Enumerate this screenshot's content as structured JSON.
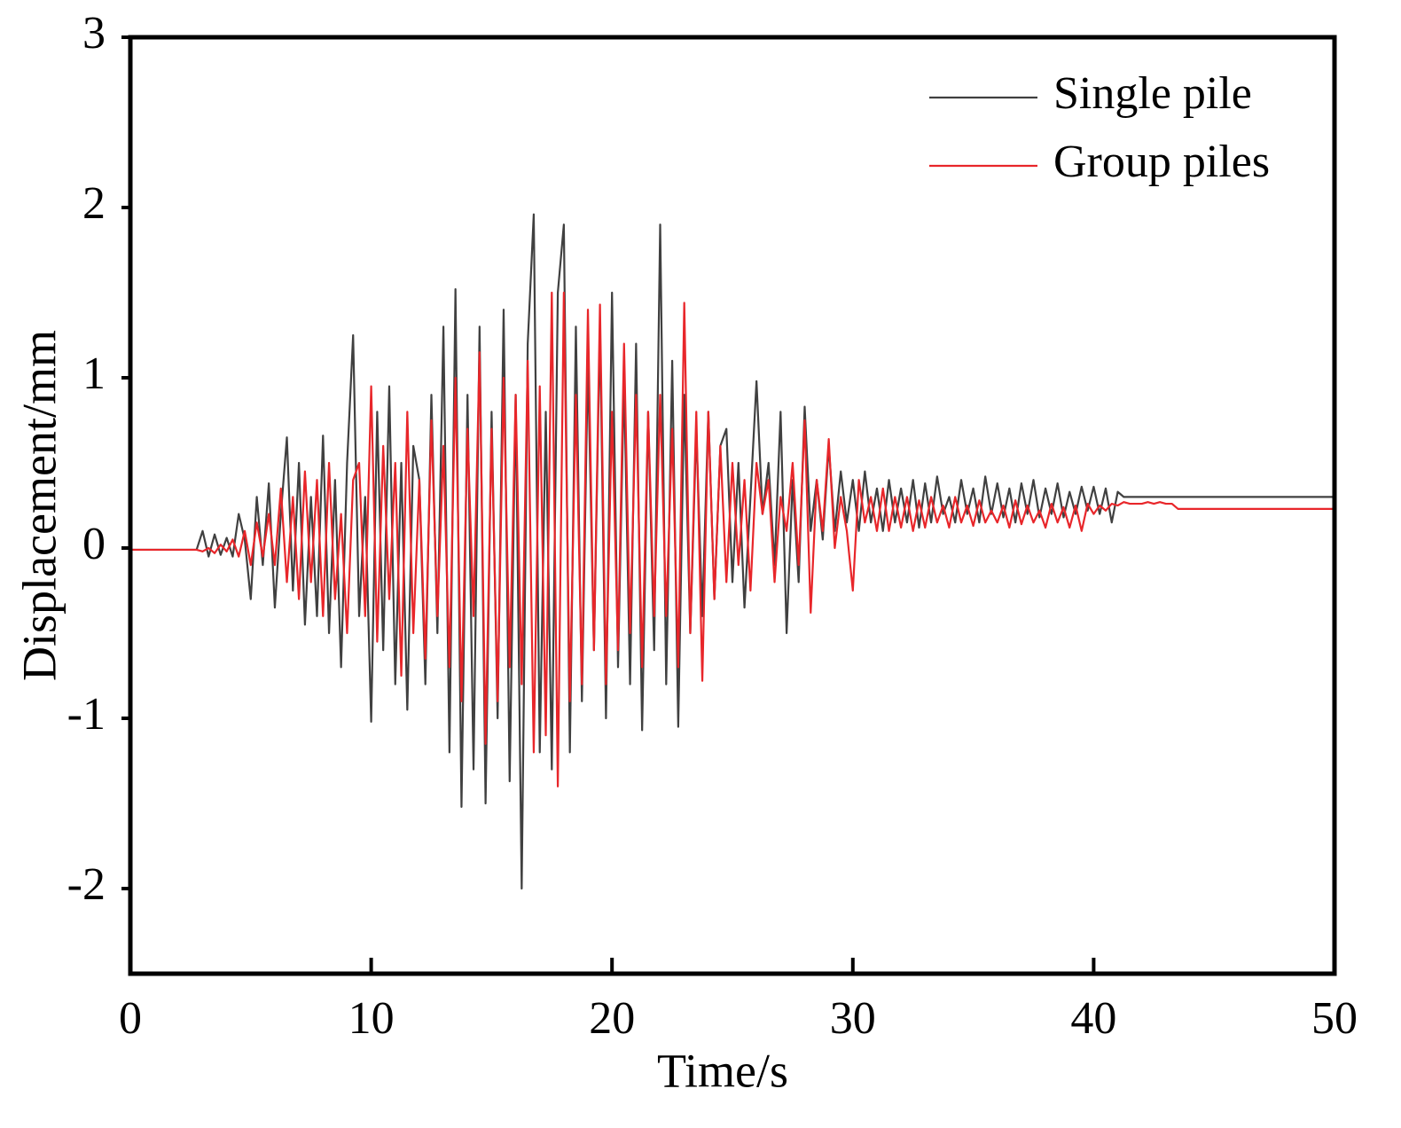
{
  "chart_data": {
    "type": "line",
    "xlabel": "Time/s",
    "ylabel": "Displacement/mm",
    "xlim": [
      0,
      50
    ],
    "xticks": [
      0,
      10,
      20,
      30,
      40,
      50
    ],
    "ylim": [
      -2.5,
      3
    ],
    "yticks": [
      -2,
      -1,
      0,
      1,
      2,
      3
    ],
    "legend": "upper right",
    "x": [
      0,
      0.25,
      0.5,
      0.75,
      1,
      1.25,
      1.5,
      1.75,
      2,
      2.25,
      2.5,
      2.75,
      3,
      3.25,
      3.5,
      3.75,
      4,
      4.25,
      4.5,
      4.75,
      5,
      5.25,
      5.5,
      5.75,
      6,
      6.25,
      6.5,
      6.75,
      7,
      7.25,
      7.5,
      7.75,
      8,
      8.25,
      8.5,
      8.75,
      9,
      9.25,
      9.5,
      9.75,
      10,
      10.25,
      10.5,
      10.75,
      11,
      11.25,
      11.5,
      11.75,
      12,
      12.25,
      12.5,
      12.75,
      13,
      13.25,
      13.5,
      13.75,
      14,
      14.25,
      14.5,
      14.75,
      15,
      15.25,
      15.5,
      15.75,
      16,
      16.25,
      16.5,
      16.75,
      17,
      17.25,
      17.5,
      17.75,
      18,
      18.25,
      18.5,
      18.75,
      19,
      19.25,
      19.5,
      19.75,
      20,
      20.25,
      20.5,
      20.75,
      21,
      21.25,
      21.5,
      21.75,
      22,
      22.25,
      22.5,
      22.75,
      23,
      23.25,
      23.5,
      23.75,
      24,
      24.25,
      24.5,
      24.75,
      25,
      25.25,
      25.5,
      25.75,
      26,
      26.25,
      26.5,
      26.75,
      27,
      27.25,
      27.5,
      27.75,
      28,
      28.25,
      28.5,
      28.75,
      29,
      29.25,
      29.5,
      29.75,
      30,
      30.25,
      30.5,
      30.75,
      31,
      31.25,
      31.5,
      31.75,
      32,
      32.25,
      32.5,
      32.75,
      33,
      33.25,
      33.5,
      33.75,
      34,
      34.25,
      34.5,
      34.75,
      35,
      35.25,
      35.5,
      35.75,
      36,
      36.25,
      36.5,
      36.75,
      37,
      37.25,
      37.5,
      37.75,
      38,
      38.25,
      38.5,
      38.75,
      39,
      39.25,
      39.5,
      39.75,
      40,
      40.25,
      40.5,
      40.75,
      41,
      41.25,
      41.5,
      41.75,
      42,
      42.25,
      42.5,
      42.75,
      43,
      43.25,
      43.5,
      43.75,
      44,
      44.25,
      44.5,
      44.75,
      45,
      45.25,
      45.5,
      45.75,
      46,
      46.25,
      46.5,
      46.75,
      47,
      47.25,
      47.5,
      47.75,
      48,
      48.25,
      48.5,
      48.75,
      49,
      49.25,
      49.5,
      49.75,
      50
    ],
    "series": [
      {
        "name": "Single pile",
        "color": "#404040",
        "values": [
          -0.01,
          -0.01,
          -0.01,
          -0.01,
          -0.01,
          -0.01,
          -0.01,
          -0.01,
          -0.01,
          -0.01,
          -0.01,
          -0.01,
          0.1,
          -0.05,
          0.08,
          -0.04,
          0.06,
          -0.05,
          0.2,
          0.05,
          -0.3,
          0.3,
          -0.1,
          0.38,
          -0.35,
          0.2,
          0.65,
          -0.25,
          0.5,
          -0.45,
          0.3,
          -0.4,
          0.66,
          -0.5,
          0.4,
          -0.7,
          0.5,
          1.25,
          -0.4,
          0.3,
          -1.02,
          0.8,
          -0.6,
          0.95,
          -0.8,
          0.5,
          -0.95,
          0.6,
          0.4,
          -0.8,
          0.9,
          -0.5,
          1.3,
          -1.2,
          1.52,
          -1.52,
          0.9,
          -1.3,
          1.3,
          -1.5,
          0.8,
          -1.0,
          1.4,
          -1.37,
          0.9,
          -2.0,
          1.2,
          1.96,
          -1.2,
          0.8,
          -1.3,
          1.5,
          1.9,
          -1.2,
          1.3,
          -0.9,
          1.1,
          -0.6,
          1.3,
          -1.0,
          1.5,
          -0.7,
          1.0,
          -0.8,
          1.2,
          -1.07,
          0.8,
          -0.6,
          1.9,
          -0.8,
          1.1,
          -1.05,
          0.9,
          -0.5,
          0.7,
          -0.4,
          0.8,
          -0.3,
          0.6,
          0.7,
          -0.2,
          0.5,
          -0.35,
          0.3,
          0.98,
          0.2,
          0.5,
          -0.1,
          0.8,
          -0.5,
          0.4,
          -0.2,
          0.83,
          0.1,
          0.4,
          0.05,
          0.6,
          0.1,
          0.45,
          0.15,
          0.4,
          0.1,
          0.45,
          0.15,
          0.35,
          0.1,
          0.4,
          0.15,
          0.35,
          0.15,
          0.4,
          0.12,
          0.38,
          0.15,
          0.42,
          0.2,
          0.3,
          0.15,
          0.4,
          0.2,
          0.35,
          0.15,
          0.42,
          0.2,
          0.38,
          0.18,
          0.35,
          0.15,
          0.38,
          0.2,
          0.4,
          0.18,
          0.35,
          0.2,
          0.38,
          0.18,
          0.33,
          0.2,
          0.36,
          0.22,
          0.36,
          0.2,
          0.35,
          0.15,
          0.33,
          0.3,
          0.3,
          0.3,
          0.3,
          0.3,
          0.3,
          0.3,
          0.3,
          0.3,
          0.3,
          0.3,
          0.3,
          0.3,
          0.3,
          0.3,
          0.3,
          0.3,
          0.3,
          0.3,
          0.3,
          0.3,
          0.3,
          0.3,
          0.3,
          0.3,
          0.3,
          0.3,
          0.3,
          0.3,
          0.3,
          0.3,
          0.3,
          0.3,
          0.3,
          0.3,
          0.3
        ]
      },
      {
        "name": "Group piles",
        "color": "#e8262a",
        "values": [
          -0.01,
          -0.01,
          -0.01,
          -0.01,
          -0.01,
          -0.01,
          -0.01,
          -0.01,
          -0.01,
          -0.01,
          -0.01,
          -0.01,
          -0.02,
          0.0,
          -0.03,
          0.02,
          -0.02,
          0.05,
          -0.05,
          0.1,
          -0.1,
          0.15,
          -0.05,
          0.2,
          -0.1,
          0.35,
          -0.2,
          0.3,
          -0.3,
          0.45,
          -0.2,
          0.4,
          -0.4,
          0.5,
          -0.3,
          0.2,
          -0.5,
          0.4,
          0.5,
          -0.4,
          0.95,
          -0.55,
          0.6,
          -0.3,
          0.5,
          -0.75,
          0.8,
          -0.5,
          0.4,
          -0.65,
          0.75,
          -0.4,
          0.6,
          -0.7,
          1.0,
          -0.9,
          0.7,
          -0.4,
          1.15,
          -1.15,
          0.7,
          -0.9,
          1.0,
          -0.7,
          0.9,
          -0.8,
          1.1,
          -1.2,
          0.95,
          -1.1,
          1.5,
          -1.4,
          1.5,
          -0.9,
          0.9,
          -0.8,
          1.4,
          -0.6,
          1.43,
          -0.8,
          0.8,
          -0.6,
          1.2,
          -0.5,
          0.9,
          -0.7,
          0.8,
          -0.4,
          0.9,
          -0.4,
          0.7,
          -0.7,
          1.44,
          -0.5,
          0.8,
          -0.78,
          0.8,
          -0.3,
          0.6,
          -0.2,
          0.5,
          -0.1,
          0.4,
          -0.25,
          0.5,
          0.2,
          0.4,
          -0.2,
          0.3,
          0.1,
          0.5,
          -0.1,
          0.75,
          -0.38,
          0.4,
          0.1,
          0.64,
          0.0,
          0.3,
          0.1,
          -0.25,
          0.4,
          0.15,
          0.3,
          0.1,
          0.35,
          0.1,
          0.3,
          0.12,
          0.3,
          0.1,
          0.28,
          0.12,
          0.3,
          0.15,
          0.25,
          0.12,
          0.3,
          0.15,
          0.25,
          0.13,
          0.28,
          0.15,
          0.22,
          0.15,
          0.25,
          0.12,
          0.28,
          0.14,
          0.25,
          0.15,
          0.22,
          0.12,
          0.26,
          0.15,
          0.24,
          0.12,
          0.25,
          0.1,
          0.26,
          0.2,
          0.25,
          0.22,
          0.26,
          0.25,
          0.27,
          0.26,
          0.26,
          0.26,
          0.27,
          0.26,
          0.27,
          0.26,
          0.26,
          0.23,
          0.23,
          0.23,
          0.23,
          0.23,
          0.23,
          0.23,
          0.23,
          0.23,
          0.23,
          0.23,
          0.23,
          0.23,
          0.23,
          0.23,
          0.23,
          0.23,
          0.23,
          0.23,
          0.23,
          0.23,
          0.23,
          0.23,
          0.23,
          0.23,
          0.23,
          0.23
        ]
      }
    ]
  }
}
